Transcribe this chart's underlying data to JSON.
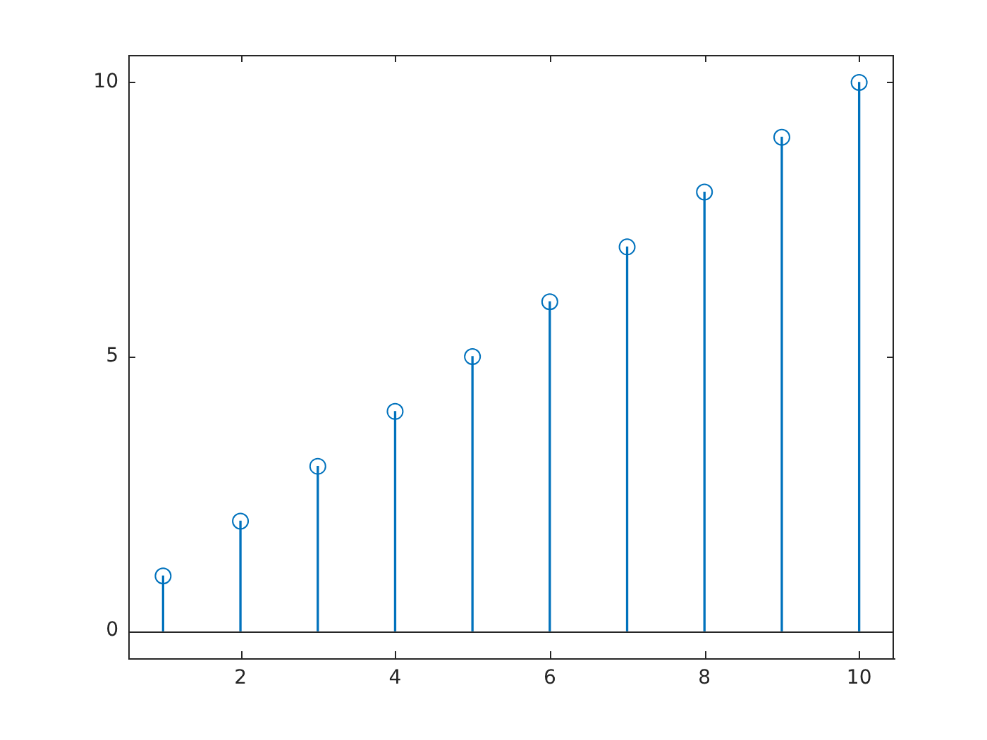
{
  "chart_data": {
    "type": "lollipop",
    "x": [
      1,
      2,
      3,
      4,
      5,
      6,
      7,
      8,
      9,
      10
    ],
    "values": [
      1,
      2,
      3,
      4,
      5,
      6,
      7,
      8,
      9,
      10
    ],
    "color": "#0072bd",
    "marker": "circle",
    "xlim": [
      0.55,
      10.45
    ],
    "xticks": [
      2,
      4,
      6,
      8,
      10
    ],
    "ylim": [
      -0.5,
      10.5
    ],
    "yticks": [
      0,
      5,
      10
    ],
    "ref_lines": [
      {
        "axis": "y",
        "value": 0,
        "color": "#262626"
      }
    ]
  }
}
